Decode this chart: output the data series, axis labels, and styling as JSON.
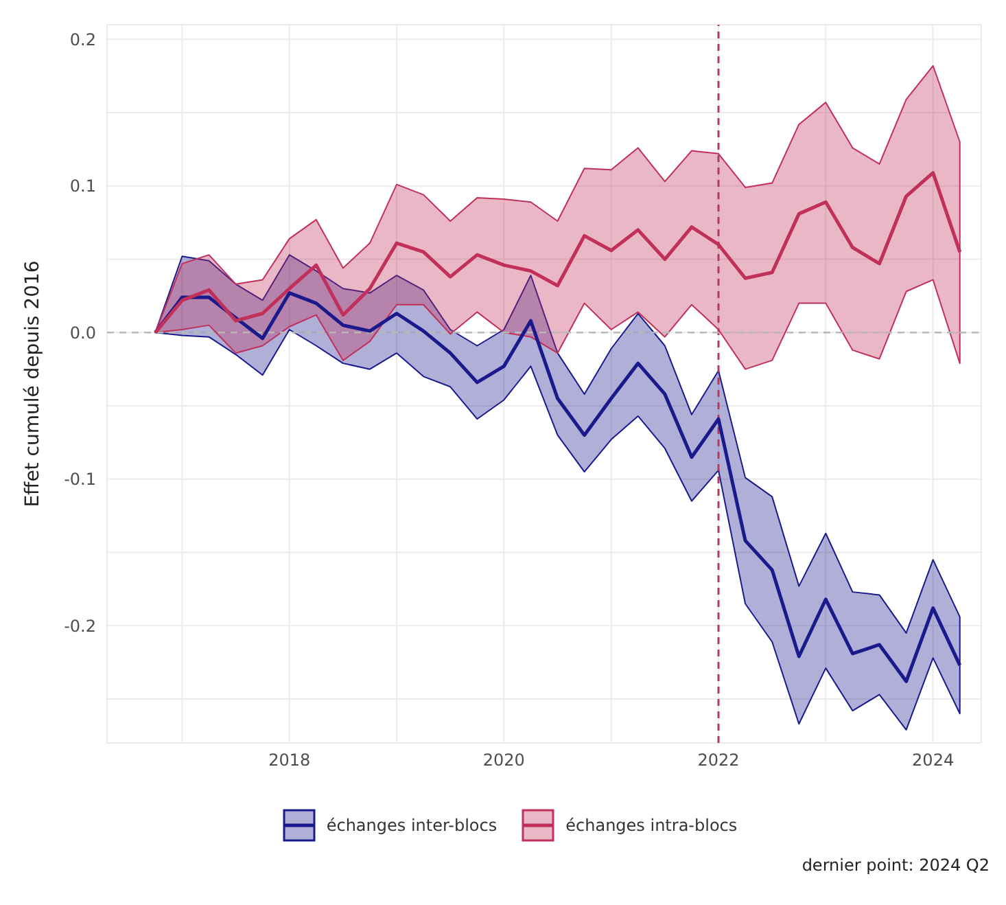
{
  "chart_data": {
    "type": "line",
    "ylabel": "Effet cumulé depuis 2016",
    "x": [
      2016.75,
      2017,
      2017.25,
      2017.5,
      2017.75,
      2018,
      2018.25,
      2018.5,
      2018.75,
      2019,
      2019.25,
      2019.5,
      2019.75,
      2020,
      2020.25,
      2020.5,
      2020.75,
      2021,
      2021.25,
      2021.5,
      2021.75,
      2022,
      2022.25,
      2022.5,
      2022.75,
      2023,
      2023.25,
      2023.5,
      2023.75,
      2024,
      2024.25
    ],
    "series": [
      {
        "name": "échanges inter-blocs",
        "color": "#1a1a8c",
        "values": [
          0,
          0.024,
          0.024,
          0.01,
          -0.004,
          0.027,
          0.02,
          0.005,
          0.001,
          0.013,
          0.001,
          -0.014,
          -0.034,
          -0.023,
          0.008,
          -0.045,
          -0.07,
          -0.045,
          -0.021,
          -0.042,
          -0.085,
          -0.059,
          -0.142,
          -0.162,
          -0.221,
          -0.182,
          -0.219,
          -0.213,
          -0.238,
          -0.188,
          -0.227
        ],
        "lower": [
          0,
          -0.002,
          -0.003,
          -0.015,
          -0.029,
          0.002,
          -0.009,
          -0.021,
          -0.025,
          -0.014,
          -0.03,
          -0.037,
          -0.059,
          -0.046,
          -0.023,
          -0.07,
          -0.095,
          -0.073,
          -0.057,
          -0.079,
          -0.115,
          -0.094,
          -0.185,
          -0.211,
          -0.267,
          -0.229,
          -0.258,
          -0.247,
          -0.271,
          -0.222,
          -0.26
        ],
        "upper": [
          0,
          0.052,
          0.049,
          0.033,
          0.022,
          0.053,
          0.042,
          0.03,
          0.027,
          0.039,
          0.029,
          0.002,
          -0.009,
          0.002,
          0.039,
          -0.014,
          -0.042,
          -0.011,
          0.013,
          -0.009,
          -0.056,
          -0.026,
          -0.099,
          -0.112,
          -0.173,
          -0.137,
          -0.177,
          -0.179,
          -0.205,
          -0.155,
          -0.194
        ]
      },
      {
        "name": "échanges intra-blocs",
        "color": "#c0305a",
        "values": [
          0,
          0.022,
          0.029,
          0.008,
          0.013,
          0.03,
          0.046,
          0.012,
          0.03,
          0.061,
          0.055,
          0.038,
          0.053,
          0.046,
          0.042,
          0.032,
          0.066,
          0.056,
          0.07,
          0.05,
          0.072,
          0.06,
          0.037,
          0.041,
          0.081,
          0.089,
          0.058,
          0.047,
          0.093,
          0.109,
          0.055
        ],
        "lower": [
          0,
          0.002,
          0.005,
          -0.014,
          -0.009,
          0.004,
          0.012,
          -0.019,
          -0.006,
          0.019,
          0.019,
          -0.001,
          0.014,
          0.0,
          -0.003,
          -0.014,
          0.02,
          0.002,
          0.014,
          -0.003,
          0.019,
          0.002,
          -0.025,
          -0.019,
          0.02,
          0.02,
          -0.012,
          -0.018,
          0.028,
          0.036,
          -0.021
        ],
        "upper": [
          0,
          0.047,
          0.053,
          0.033,
          0.036,
          0.064,
          0.077,
          0.044,
          0.061,
          0.101,
          0.094,
          0.076,
          0.092,
          0.091,
          0.089,
          0.076,
          0.112,
          0.111,
          0.126,
          0.103,
          0.124,
          0.122,
          0.099,
          0.102,
          0.142,
          0.157,
          0.126,
          0.115,
          0.159,
          0.182,
          0.13
        ]
      }
    ],
    "xlim": [
      2016.3,
      2024.45
    ],
    "xticks": [
      {
        "value": 2017,
        "label": null
      },
      2018,
      {
        "value": 2019,
        "label": null
      },
      2020,
      {
        "value": 2021,
        "label": null
      },
      2022,
      {
        "value": 2023,
        "label": null
      },
      2024
    ],
    "ylim": [
      -0.28,
      0.21
    ],
    "yticks": [
      {
        "value": -0.25,
        "label": null
      },
      -0.2,
      {
        "value": -0.15,
        "label": null
      },
      -0.1,
      {
        "value": -0.05,
        "label": null
      },
      {
        "value": 0,
        "label": "0.0"
      },
      {
        "value": 0.05,
        "label": null
      },
      0.1,
      {
        "value": 0.15,
        "label": null
      },
      0.2
    ],
    "grid": true,
    "legend": "bottom",
    "ref_lines": [
      {
        "axis": "x",
        "value": 2022,
        "color": "#b03a62",
        "line_style": "dashed"
      },
      {
        "axis": "y",
        "value": 0,
        "color": "#b8b8b8",
        "line_style": "dashed"
      }
    ],
    "annotations": [
      "dernier point: 2024 Q2"
    ]
  }
}
